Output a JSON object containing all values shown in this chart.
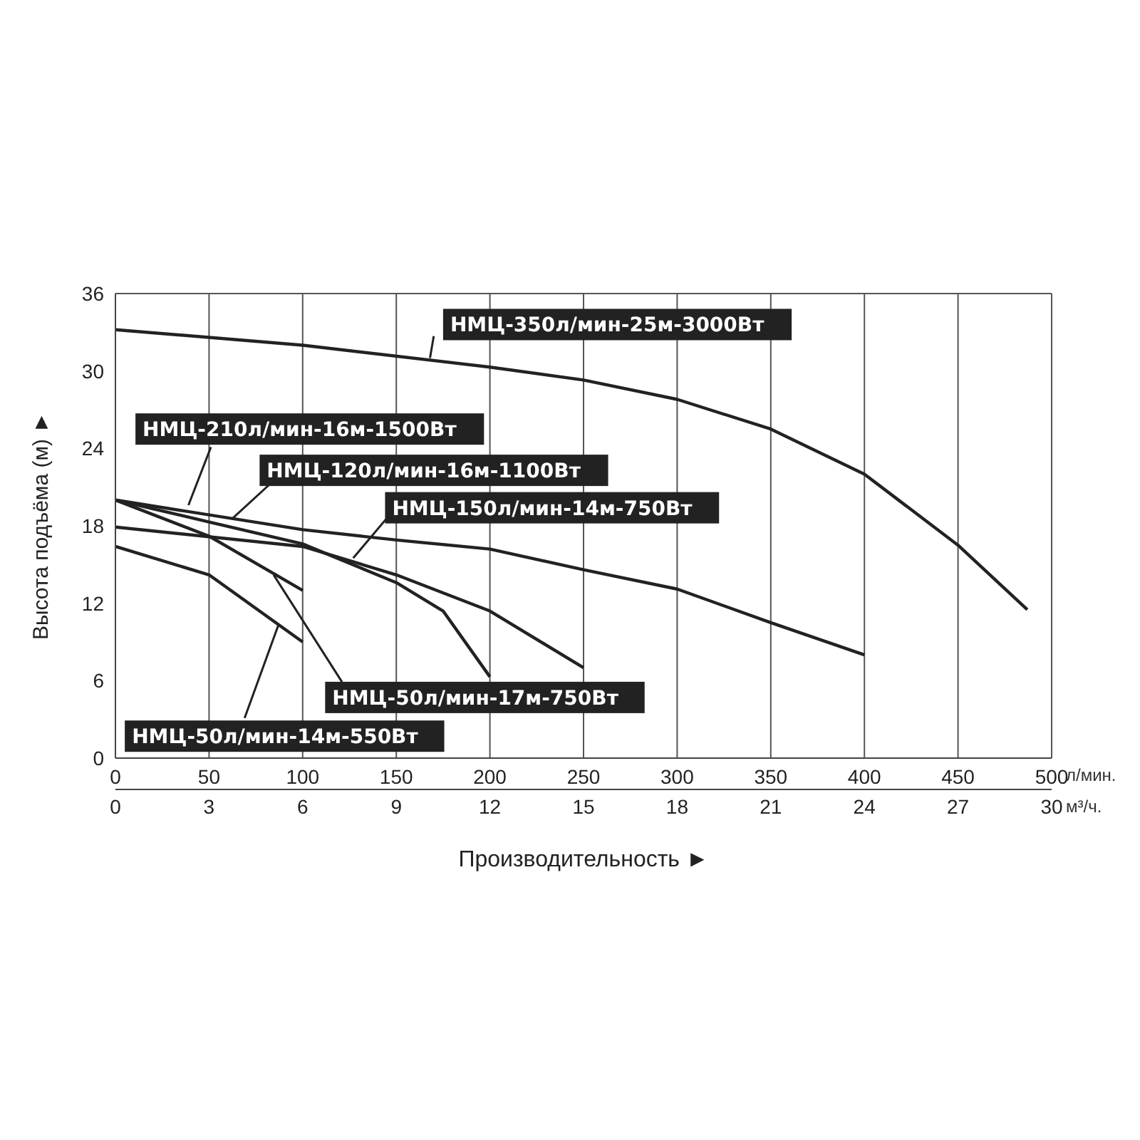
{
  "chart_data": {
    "type": "line",
    "xlabel": "Производительность ►",
    "ylabel": "Высота подъёма (м) ►",
    "xlim": [
      0,
      500
    ],
    "xticks": [
      0,
      50,
      100,
      150,
      200,
      250,
      300,
      350,
      400,
      450,
      500
    ],
    "x2lim": [
      0,
      30
    ],
    "x2ticks": [
      0,
      3,
      6,
      9,
      12,
      15,
      18,
      21,
      24,
      27,
      30
    ],
    "ylim": [
      0,
      36
    ],
    "yticks": [
      0,
      6,
      12,
      18,
      24,
      30,
      36
    ],
    "grid": true,
    "legend": false,
    "marker": "none",
    "line_style": "solid",
    "annotations": [
      "л/мин.",
      "м³/ч."
    ],
    "series": [
      {
        "name": "НМЦ-350л/мин-25м-3000Вт",
        "color": "#222222",
        "x": [
          0,
          100,
          200,
          250,
          300,
          350,
          400,
          450,
          487
        ],
        "values": [
          33.2,
          32,
          30.3,
          29.3,
          27.8,
          25.5,
          22,
          16.5,
          11.5
        ]
      },
      {
        "name": "НМЦ-210л/мин-16м-1500Вт",
        "color": "#222222",
        "x": [
          0,
          100,
          150,
          200,
          250,
          300,
          350,
          400
        ],
        "values": [
          20,
          17.7,
          16.9,
          16.2,
          14.6,
          13.1,
          10.5,
          8
        ]
      },
      {
        "name": "НМЦ-120л/мин-16м-1100Вт",
        "color": "#222222",
        "x": [
          0,
          50,
          100,
          150,
          175,
          200
        ],
        "values": [
          20,
          18.3,
          16.6,
          13.6,
          11.4,
          6.3
        ]
      },
      {
        "name": "НМЦ-150л/мин-14м-750Вт",
        "color": "#222222",
        "x": [
          0,
          100,
          150,
          200,
          250
        ],
        "values": [
          17.9,
          16.4,
          14.2,
          11.4,
          7
        ]
      },
      {
        "name": "НМЦ-50л/мин-17м-750Вт",
        "color": "#222222",
        "x": [
          0,
          50,
          100
        ],
        "values": [
          20,
          17.2,
          13
        ]
      },
      {
        "name": "НМЦ-50л/мин-14м-550Вт",
        "color": "#222222",
        "x": [
          0,
          50,
          100
        ],
        "values": [
          16.4,
          14.2,
          9
        ]
      }
    ]
  }
}
